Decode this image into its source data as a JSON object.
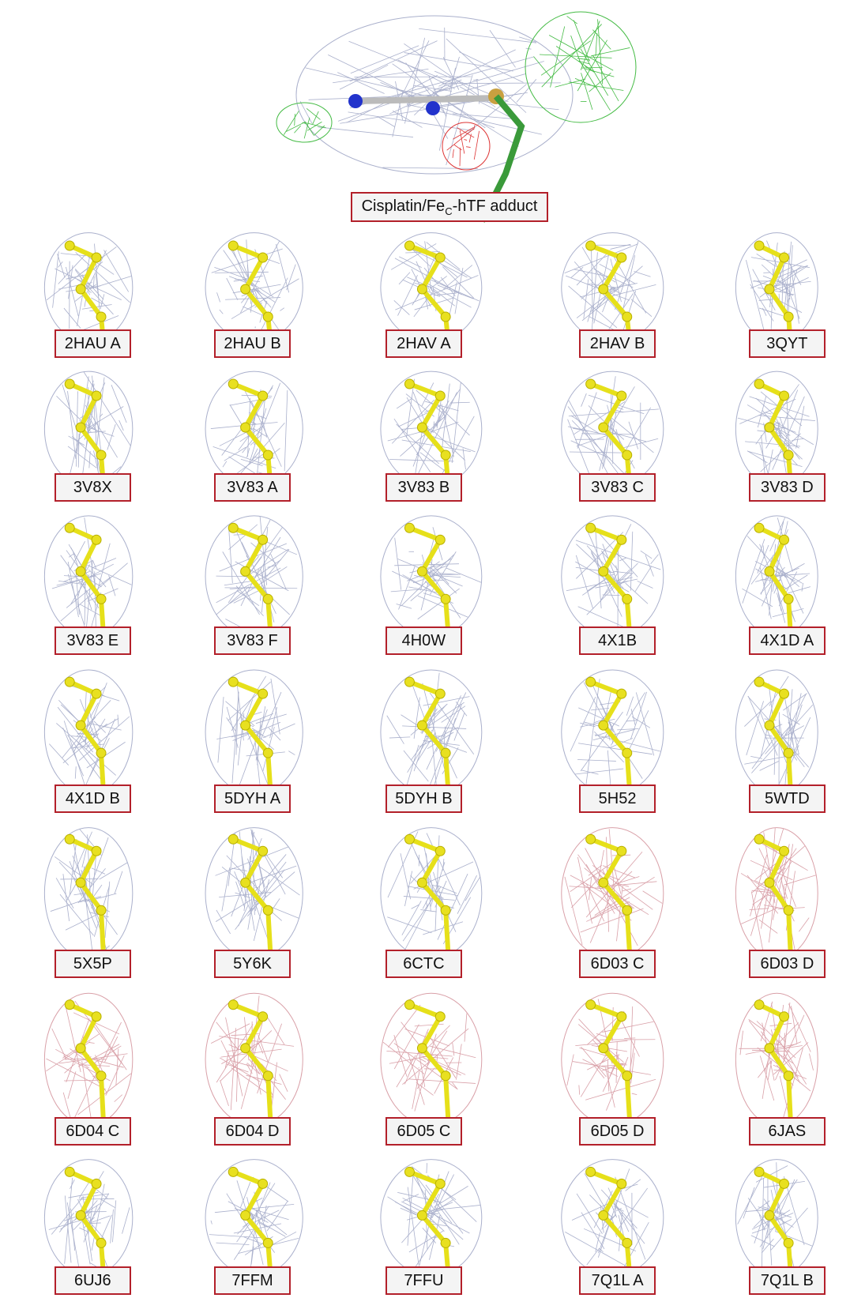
{
  "header": {
    "label": {
      "before": "Cisplatin/Fe",
      "sub": "C",
      "after": "-hTF adduct"
    }
  },
  "rows": [
    [
      "2HAU A",
      "2HAU B",
      "2HAV A",
      "2HAV B",
      "3QYT"
    ],
    [
      "3V8X",
      "3V83 A",
      "3V83 B",
      "3V83 C",
      "3V83 D"
    ],
    [
      "3V83 E",
      "3V83 F",
      "4H0W",
      "4X1B",
      "4X1D A"
    ],
    [
      "4X1D B",
      "5DYH A",
      "5DYH B",
      "5H52",
      "5WTD"
    ],
    [
      "5X5P",
      "5Y6K",
      "6CTC",
      "6D03 C",
      "6D03 D"
    ],
    [
      "6D04 C",
      "6D04 D",
      "6D05 C",
      "6D05 D",
      "6JAS"
    ],
    [
      "6UJ6",
      "7FFM",
      "7FFU",
      "7Q1L A",
      "7Q1L B"
    ]
  ]
}
